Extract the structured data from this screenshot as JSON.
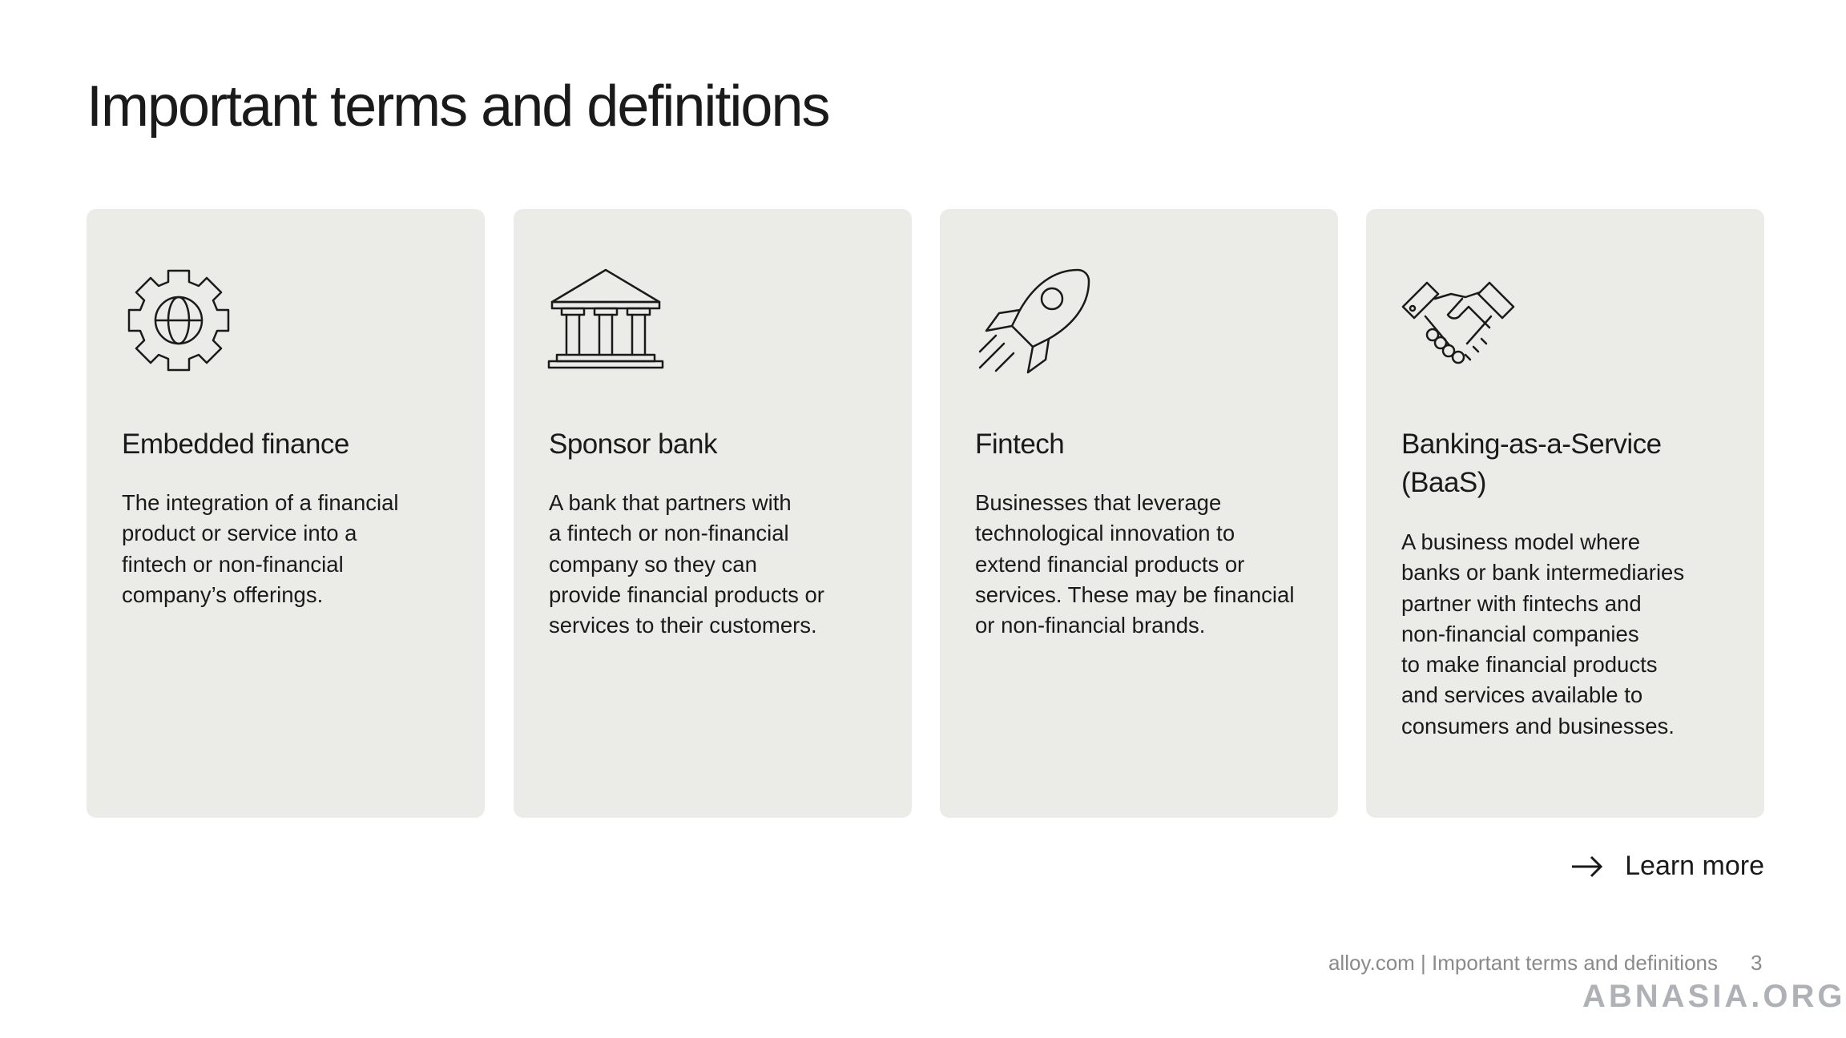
{
  "title": "Important terms and definitions",
  "cards": [
    {
      "title": "Embedded finance",
      "body": [
        "The integration of a financial",
        "product or service into a",
        "fintech or non-financial",
        "company’s offerings."
      ]
    },
    {
      "title": "Sponsor bank",
      "body": [
        "A bank that partners with",
        "a fintech or non-financial",
        "company so they can",
        "provide financial products or",
        "services to their customers."
      ]
    },
    {
      "title": "Fintech",
      "body": [
        "Businesses that leverage",
        "technological innovation to",
        "extend financial products or",
        "services. These may be financial",
        "or non-financial brands."
      ]
    },
    {
      "title": "Banking-as-a-Service (BaaS)",
      "body": [
        "A business model where",
        "banks or bank intermediaries",
        "partner with fintechs and",
        "non-financial companies",
        "to make financial products",
        "and services available to",
        "consumers and businesses."
      ]
    }
  ],
  "link": "Learn more",
  "footer": {
    "text": "alloy.com | Important terms and definitions",
    "page": "3"
  },
  "watermark": "ABNASIA.ORG"
}
